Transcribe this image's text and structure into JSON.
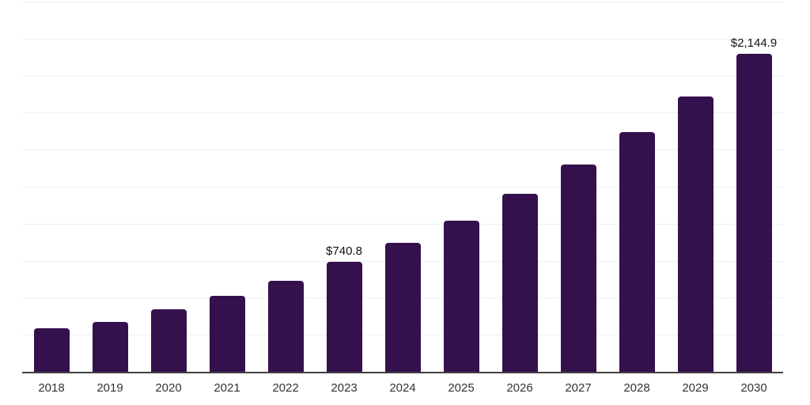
{
  "figure": {
    "background": "#ffffff"
  },
  "style": {
    "bar_color": "#34114d",
    "axis_line_color": "#414141",
    "gridline_color": "#efefef",
    "tick_label_color": "#333333",
    "data_label_color": "#111111"
  },
  "chart_data": {
    "type": "bar",
    "title": "",
    "xlabel": "",
    "ylabel": "",
    "categories": [
      "2018",
      "2019",
      "2020",
      "2021",
      "2022",
      "2023",
      "2024",
      "2025",
      "2026",
      "2027",
      "2028",
      "2029",
      "2030"
    ],
    "values": [
      295,
      335,
      420,
      515,
      615,
      740.8,
      870,
      1020,
      1200,
      1400,
      1620,
      1860,
      2144.9
    ],
    "data_labels": [
      null,
      null,
      null,
      null,
      null,
      "$740.8",
      null,
      null,
      null,
      null,
      null,
      null,
      "$2,144.9"
    ],
    "ylim": [
      0,
      2500
    ],
    "gridline_interval": 250,
    "grid": true,
    "legend": false,
    "y_axis_labels_visible": false
  }
}
